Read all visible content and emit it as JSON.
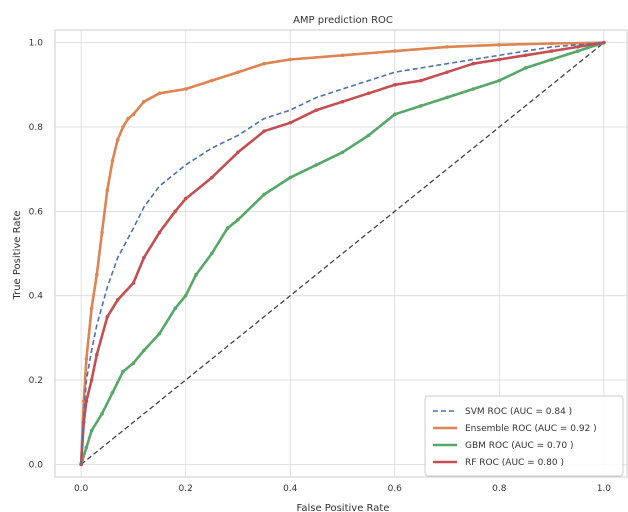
{
  "chart_data": {
    "type": "line",
    "title": "AMP prediction ROC",
    "xlabel": "False Positive Rate",
    "ylabel": "True Positive Rate",
    "xlim": [
      -0.05,
      1.05
    ],
    "ylim": [
      -0.03,
      1.03
    ],
    "xticks": [
      0.0,
      0.2,
      0.4,
      0.6,
      0.8,
      1.0
    ],
    "yticks": [
      0.0,
      0.2,
      0.4,
      0.6,
      0.8,
      1.0
    ],
    "xtick_labels": [
      "0.0",
      "0.2",
      "0.4",
      "0.6",
      "0.8",
      "1.0"
    ],
    "ytick_labels": [
      "0.0",
      "0.2",
      "0.4",
      "0.6",
      "0.8",
      "1.0"
    ],
    "grid": true,
    "legend_position": "lower-right",
    "diagonal": {
      "x": [
        0,
        1
      ],
      "y": [
        0,
        1
      ],
      "color": "#444444",
      "style": "dashed"
    },
    "series": [
      {
        "name": "SVM ROC (AUC = 0.84 )",
        "color": "#4c72b0",
        "style": "dashed",
        "x": [
          0,
          0.005,
          0.01,
          0.02,
          0.03,
          0.05,
          0.07,
          0.1,
          0.12,
          0.15,
          0.18,
          0.2,
          0.25,
          0.3,
          0.35,
          0.4,
          0.45,
          0.5,
          0.55,
          0.6,
          0.65,
          0.7,
          0.75,
          0.8,
          0.85,
          0.9,
          0.95,
          1.0
        ],
        "y": [
          0,
          0.12,
          0.2,
          0.27,
          0.33,
          0.42,
          0.49,
          0.56,
          0.61,
          0.66,
          0.69,
          0.71,
          0.75,
          0.78,
          0.82,
          0.84,
          0.87,
          0.89,
          0.91,
          0.93,
          0.94,
          0.95,
          0.96,
          0.97,
          0.98,
          0.99,
          0.995,
          1.0
        ]
      },
      {
        "name": "Ensemble ROC (AUC = 0.92 )",
        "color": "#dd8452",
        "style": "solid",
        "x": [
          0,
          0.005,
          0.01,
          0.02,
          0.03,
          0.04,
          0.05,
          0.06,
          0.07,
          0.08,
          0.09,
          0.1,
          0.12,
          0.15,
          0.2,
          0.25,
          0.3,
          0.35,
          0.4,
          0.5,
          0.6,
          0.7,
          0.8,
          0.9,
          1.0
        ],
        "y": [
          0,
          0.15,
          0.25,
          0.37,
          0.45,
          0.55,
          0.65,
          0.72,
          0.77,
          0.8,
          0.82,
          0.83,
          0.86,
          0.88,
          0.89,
          0.91,
          0.93,
          0.95,
          0.96,
          0.97,
          0.98,
          0.99,
          0.995,
          0.998,
          1.0
        ]
      },
      {
        "name": "GBM ROC (AUC = 0.70 )",
        "color": "#55a868",
        "style": "solid",
        "x": [
          0,
          0.01,
          0.02,
          0.04,
          0.06,
          0.08,
          0.1,
          0.12,
          0.15,
          0.18,
          0.2,
          0.22,
          0.25,
          0.28,
          0.3,
          0.35,
          0.4,
          0.45,
          0.5,
          0.55,
          0.6,
          0.65,
          0.7,
          0.75,
          0.8,
          0.85,
          0.9,
          0.95,
          1.0
        ],
        "y": [
          0,
          0.04,
          0.08,
          0.12,
          0.17,
          0.22,
          0.24,
          0.27,
          0.31,
          0.37,
          0.4,
          0.45,
          0.5,
          0.56,
          0.58,
          0.64,
          0.68,
          0.71,
          0.74,
          0.78,
          0.83,
          0.85,
          0.87,
          0.89,
          0.91,
          0.94,
          0.96,
          0.98,
          1.0
        ]
      },
      {
        "name": "RF ROC (AUC = 0.80 )",
        "color": "#c44e52",
        "style": "solid",
        "x": [
          0,
          0.005,
          0.01,
          0.02,
          0.03,
          0.05,
          0.07,
          0.1,
          0.12,
          0.15,
          0.18,
          0.2,
          0.25,
          0.3,
          0.35,
          0.4,
          0.45,
          0.5,
          0.55,
          0.6,
          0.65,
          0.7,
          0.75,
          0.8,
          0.85,
          0.9,
          0.95,
          1.0
        ],
        "y": [
          0,
          0.1,
          0.15,
          0.2,
          0.26,
          0.35,
          0.39,
          0.43,
          0.49,
          0.55,
          0.6,
          0.63,
          0.68,
          0.74,
          0.79,
          0.81,
          0.84,
          0.86,
          0.88,
          0.9,
          0.91,
          0.93,
          0.95,
          0.96,
          0.97,
          0.98,
          0.99,
          1.0
        ]
      }
    ]
  }
}
